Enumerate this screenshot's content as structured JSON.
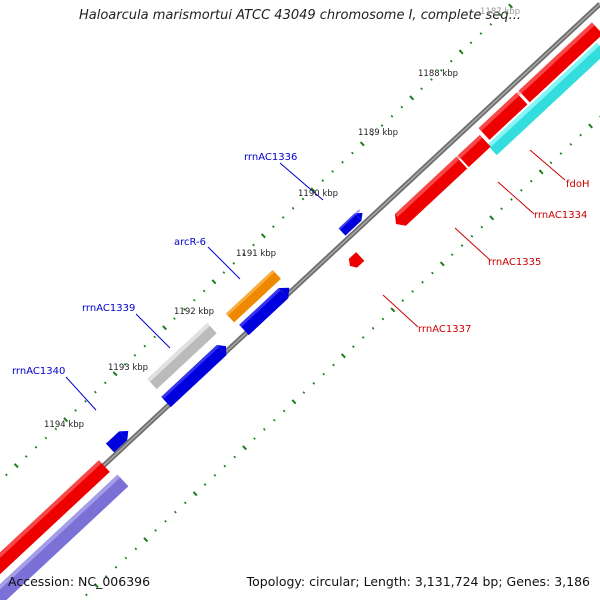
{
  "title": "Haloarcula marismortui ATCC 43049 chromosome I, complete seq...",
  "footer": {
    "accession": "Accession: NC_006396",
    "summary": "Topology: circular; Length: 3,131,724 bp; Genes: 3,186"
  },
  "colors": {
    "backbone": "#808080",
    "tick": "#1a7f1a",
    "red_feature": "#ee0000",
    "cyan_feature": "#33dddd",
    "blue_feature": "#0000dd",
    "orange_feature": "#ee8800",
    "grey_feature": "#bbbbbb",
    "purple_feature": "#7a70d6",
    "label_left": "#0000cc",
    "label_right": "#cc0000"
  },
  "scale_labels": [
    {
      "kbp": 1187,
      "text": "1187 kbp"
    },
    {
      "kbp": 1188,
      "text": "1188 kbp"
    },
    {
      "kbp": 1189,
      "text": "1189 kbp"
    },
    {
      "kbp": 1190,
      "text": "1190 kbp"
    },
    {
      "kbp": 1191,
      "text": "1191 kbp"
    },
    {
      "kbp": 1192,
      "text": "1192 kbp"
    },
    {
      "kbp": 1193,
      "text": "1193 kbp"
    },
    {
      "kbp": 1194,
      "text": "1194 kbp"
    }
  ],
  "feature_labels": [
    {
      "name": "rrnAC1336",
      "side": "left"
    },
    {
      "name": "arcR-6",
      "side": "left"
    },
    {
      "name": "rrnAC1339",
      "side": "left"
    },
    {
      "name": "rrnAC1340",
      "side": "left"
    },
    {
      "name": "fdoH",
      "side": "right"
    },
    {
      "name": "rrnAC1334",
      "side": "right"
    },
    {
      "name": "rrnAC1335",
      "side": "right"
    },
    {
      "name": "rrnAC1337",
      "side": "right"
    }
  ]
}
